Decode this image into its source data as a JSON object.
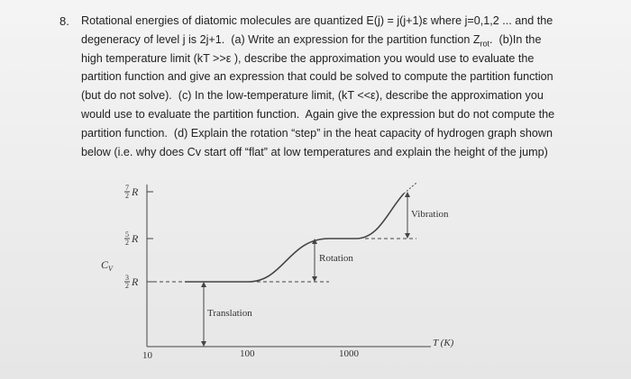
{
  "problem": {
    "number": "8.",
    "lines": [
      [
        "Rotational energies of diatomic molecules are quantized E(j) = j(j+1)ε where j=0,1,2 ... and the"
      ],
      [
        "degeneracy of level j is 2j+1.  (a) Write an expression for the partition function Z",
        "rot",
        ".  (b)In the"
      ],
      [
        "high temperature limit (kT >>ε ), describe the approximation you would use to evaluate the"
      ],
      [
        "partition function and give an expression that could be solved to compute the partition function"
      ],
      [
        "(but do not solve).  (c) In the low-temperature limit, (kT <<ε), describe the approximation you"
      ],
      [
        "would use to evaluate the partition function.  Again give the expression but do not compute the"
      ],
      [
        "partition function.  (d) Explain the rotation “step” in the heat capacity of hydrogen graph shown"
      ],
      [
        "below (i.e. why does Cv start off “flat” at low temperatures and explain the height of the jump)"
      ]
    ]
  },
  "figure": {
    "y_axis_label": {
      "symbol": "C",
      "subscript": "V"
    },
    "levels": [
      {
        "numerator": "7",
        "denominator": "2",
        "symbol": "R"
      },
      {
        "numerator": "5",
        "denominator": "2",
        "symbol": "R"
      },
      {
        "numerator": "3",
        "denominator": "2",
        "symbol": "R"
      }
    ],
    "annotations": [
      "Vibration",
      "Rotation",
      "Translation"
    ],
    "x_axis_label": "T (K)",
    "x_ticks": [
      "10",
      "100",
      "1000"
    ]
  }
}
